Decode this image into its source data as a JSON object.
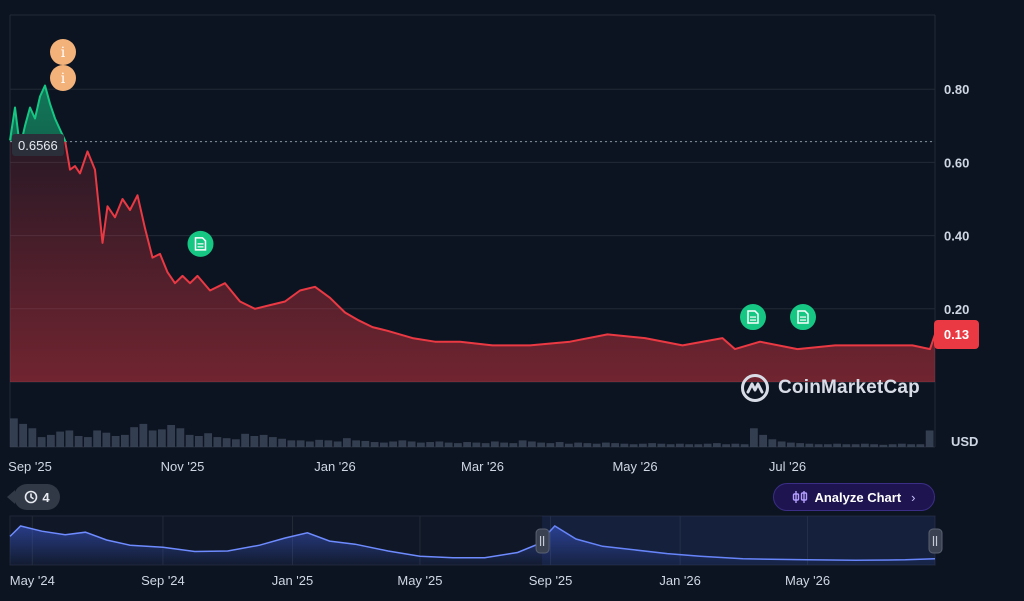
{
  "chart_data": {
    "type": "line",
    "currency_unit": "USD",
    "reference_price": "0.6566",
    "current_price": "0.13",
    "y_ticks": [
      "0.80",
      "0.60",
      "0.40",
      "0.20"
    ],
    "y_tick_values": [
      0.8,
      0.6,
      0.4,
      0.2
    ],
    "x_ticks": [
      "Sep '25",
      "Nov '25",
      "Jan '26",
      "Mar '26",
      "May '26",
      "Jul '26"
    ],
    "x_tick_dates": [
      "2025-09-01",
      "2025-11-01",
      "2026-01-01",
      "2026-03-01",
      "2026-05-01",
      "2026-07-01"
    ],
    "series": [
      {
        "x": [
          "2025-08-24",
          "2025-08-26",
          "2025-08-28",
          "2025-08-30",
          "2025-09-01",
          "2025-09-03",
          "2025-09-05",
          "2025-09-07",
          "2025-09-09",
          "2025-09-11",
          "2025-09-13",
          "2025-09-15",
          "2025-09-17",
          "2025-09-19",
          "2025-09-21",
          "2025-09-24",
          "2025-09-27",
          "2025-09-30",
          "2025-10-02",
          "2025-10-05",
          "2025-10-08",
          "2025-10-11",
          "2025-10-14",
          "2025-10-17",
          "2025-10-20",
          "2025-10-23",
          "2025-10-26",
          "2025-10-29",
          "2025-11-01",
          "2025-11-04",
          "2025-11-07",
          "2025-11-12",
          "2025-11-18",
          "2025-11-24",
          "2025-11-30",
          "2025-12-06",
          "2025-12-12",
          "2025-12-18",
          "2025-12-24",
          "2025-12-30",
          "2026-01-05",
          "2026-01-10",
          "2026-01-16",
          "2026-01-22",
          "2026-02-01",
          "2026-02-10",
          "2026-02-20",
          "2026-03-05",
          "2026-03-20",
          "2026-04-05",
          "2026-04-20",
          "2026-05-05",
          "2026-05-20",
          "2026-06-05",
          "2026-06-10",
          "2026-06-20",
          "2026-07-05",
          "2026-07-20",
          "2026-08-05",
          "2026-08-20",
          "2026-08-27",
          "2026-08-29"
        ],
        "values": [
          0.66,
          0.75,
          0.64,
          0.7,
          0.75,
          0.72,
          0.78,
          0.81,
          0.76,
          0.72,
          0.69,
          0.66,
          0.58,
          0.59,
          0.57,
          0.63,
          0.58,
          0.38,
          0.48,
          0.45,
          0.5,
          0.47,
          0.51,
          0.42,
          0.34,
          0.35,
          0.3,
          0.27,
          0.29,
          0.27,
          0.29,
          0.25,
          0.27,
          0.22,
          0.2,
          0.21,
          0.22,
          0.25,
          0.26,
          0.23,
          0.19,
          0.17,
          0.15,
          0.14,
          0.12,
          0.11,
          0.11,
          0.1,
          0.1,
          0.11,
          0.13,
          0.12,
          0.1,
          0.12,
          0.09,
          0.11,
          0.09,
          0.1,
          0.1,
          0.1,
          0.09,
          0.13
        ]
      }
    ],
    "volume": [
      0.52,
      0.42,
      0.34,
      0.18,
      0.22,
      0.28,
      0.3,
      0.2,
      0.18,
      0.3,
      0.26,
      0.2,
      0.22,
      0.36,
      0.42,
      0.3,
      0.32,
      0.4,
      0.34,
      0.22,
      0.2,
      0.25,
      0.18,
      0.16,
      0.14,
      0.24,
      0.2,
      0.22,
      0.18,
      0.15,
      0.12,
      0.12,
      0.1,
      0.13,
      0.12,
      0.1,
      0.16,
      0.12,
      0.11,
      0.09,
      0.08,
      0.1,
      0.12,
      0.1,
      0.08,
      0.09,
      0.1,
      0.08,
      0.07,
      0.09,
      0.08,
      0.07,
      0.1,
      0.08,
      0.07,
      0.12,
      0.1,
      0.08,
      0.07,
      0.09,
      0.06,
      0.08,
      0.07,
      0.06,
      0.08,
      0.07,
      0.06,
      0.05,
      0.06,
      0.07,
      0.06,
      0.05,
      0.06,
      0.05,
      0.05,
      0.06,
      0.07,
      0.05,
      0.06,
      0.05,
      0.34,
      0.22,
      0.14,
      0.1,
      0.08,
      0.07,
      0.06,
      0.05,
      0.05,
      0.06,
      0.05,
      0.05,
      0.06,
      0.05,
      0.04,
      0.05,
      0.06,
      0.05,
      0.05,
      0.3
    ],
    "event_markers": [
      {
        "type": "info",
        "icon": "info-icon",
        "x": "2025-09-07",
        "label": "i"
      },
      {
        "type": "info",
        "icon": "info-icon",
        "x": "2025-09-07",
        "label": "i"
      },
      {
        "type": "news",
        "icon": "document-icon",
        "x": "2025-11-01"
      },
      {
        "type": "news",
        "icon": "document-icon",
        "x": "2026-06-10"
      },
      {
        "type": "news",
        "icon": "document-icon",
        "x": "2026-06-30"
      }
    ],
    "navigator": {
      "x_ticks": [
        "May '24",
        "Sep '24",
        "Jan '25",
        "May '25",
        "Sep '25",
        "Jan '26",
        "May '26"
      ],
      "x_tick_dates": [
        "2024-05-01",
        "2024-09-01",
        "2025-01-01",
        "2025-05-01",
        "2025-09-01",
        "2026-01-01",
        "2026-05-01"
      ],
      "x": [
        "2024-04-10",
        "2024-04-20",
        "2024-05-10",
        "2024-06-01",
        "2024-06-20",
        "2024-07-10",
        "2024-08-01",
        "2024-09-01",
        "2024-10-01",
        "2024-11-01",
        "2024-12-01",
        "2024-12-25",
        "2025-01-15",
        "2025-02-05",
        "2025-03-01",
        "2025-04-01",
        "2025-05-01",
        "2025-06-01",
        "2025-07-01",
        "2025-08-01",
        "2025-08-20",
        "2025-09-05",
        "2025-09-25",
        "2025-10-20",
        "2025-11-15",
        "2025-12-20",
        "2026-01-20",
        "2026-03-01",
        "2026-05-01",
        "2026-06-15",
        "2026-08-01",
        "2026-08-29"
      ],
      "values": [
        0.55,
        0.75,
        0.65,
        0.58,
        0.63,
        0.48,
        0.38,
        0.34,
        0.26,
        0.27,
        0.38,
        0.52,
        0.62,
        0.46,
        0.4,
        0.27,
        0.17,
        0.14,
        0.14,
        0.24,
        0.4,
        0.75,
        0.5,
        0.36,
        0.3,
        0.22,
        0.17,
        0.12,
        0.1,
        0.09,
        0.1,
        0.12
      ],
      "selection_start": "2025-08-24",
      "selection_end": "2026-08-29"
    },
    "colors": {
      "up": "#16c784",
      "down": "#ea3943",
      "navigator_line": "#6e8bff",
      "background": "#0d1421"
    }
  },
  "controls": {
    "history_count": "4",
    "analyze_label": "Analyze Chart"
  },
  "watermark": {
    "brand": "CoinMarketCap"
  }
}
